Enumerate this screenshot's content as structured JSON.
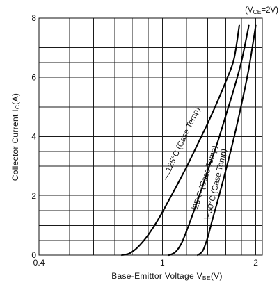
{
  "chart_data": {
    "type": "line",
    "condition_label": "(VCE=2V)",
    "condition": {
      "prefix": "(V",
      "sub": "CE",
      "suffix": "=2V)"
    },
    "xlabel": {
      "text": "Base-Emittor Voltage V",
      "sub": "BE",
      "unit": "(V)"
    },
    "ylabel": {
      "text": "Collector Current I",
      "sub": "C",
      "unit": "(A)"
    },
    "xscale": "log",
    "xlim": [
      0.4,
      2.1
    ],
    "ylim": [
      0,
      8
    ],
    "x_ticks": [
      {
        "value": 0.4,
        "label": "0.4"
      },
      {
        "value": 1,
        "label": "1"
      },
      {
        "value": 2,
        "label": "2"
      }
    ],
    "y_ticks": [
      {
        "value": 0,
        "label": "0"
      },
      {
        "value": 2,
        "label": "2"
      },
      {
        "value": 4,
        "label": "4"
      },
      {
        "value": 6,
        "label": "6"
      },
      {
        "value": 8,
        "label": "8"
      }
    ],
    "x_grid": [
      0.5,
      0.6,
      0.7,
      0.8,
      0.9,
      1,
      1.2,
      1.4,
      1.6,
      1.8,
      2
    ],
    "y_grid": [
      0.5,
      1,
      1.5,
      2,
      2.5,
      3,
      3.5,
      4,
      4.5,
      5,
      5.5,
      6,
      6.5,
      7,
      7.5,
      8
    ],
    "grid": true,
    "series": [
      {
        "name": "125°C (Case Temp)",
        "x": [
          0.74,
          0.78,
          0.82,
          0.86,
          0.9,
          0.95,
          1.0,
          1.1,
          1.2,
          1.3,
          1.4,
          1.5,
          1.6,
          1.7,
          1.77
        ],
        "y": [
          0,
          0.05,
          0.2,
          0.42,
          0.68,
          1.05,
          1.45,
          2.25,
          3.0,
          3.75,
          4.45,
          5.15,
          5.85,
          6.6,
          7.75
        ]
      },
      {
        "name": "25°C (Case Temp)",
        "x": [
          1.05,
          1.1,
          1.15,
          1.2,
          1.25,
          1.3,
          1.35,
          1.4,
          1.5,
          1.6,
          1.7,
          1.8,
          1.9
        ],
        "y": [
          0,
          0.1,
          0.38,
          0.85,
          1.35,
          1.85,
          2.35,
          2.85,
          3.75,
          4.7,
          5.6,
          6.55,
          7.75
        ]
      },
      {
        "name": "−30°C (Case Temp)",
        "x": [
          1.3,
          1.35,
          1.4,
          1.45,
          1.5,
          1.55,
          1.6,
          1.7,
          1.8,
          1.9,
          2.0
        ],
        "y": [
          0,
          0.15,
          0.6,
          1.2,
          1.75,
          2.3,
          2.85,
          3.95,
          5.1,
          6.3,
          7.75
        ]
      }
    ],
    "curve_labels": [
      {
        "text": "125°C (Case Temp)",
        "series": 0,
        "x": 1.06,
        "y": 2.8,
        "leader_from": [
          1.02,
          2.55
        ]
      },
      {
        "text": "25°C (Case Temp)",
        "series": 1,
        "x": 1.3,
        "y": 1.55,
        "leader_from": [
          1.24,
          1.6
        ]
      },
      {
        "text": "−30°C (Case Temp)",
        "series": 2,
        "x": 1.43,
        "y": 1.25,
        "leader_from": [
          1.36,
          1.25
        ]
      }
    ]
  }
}
